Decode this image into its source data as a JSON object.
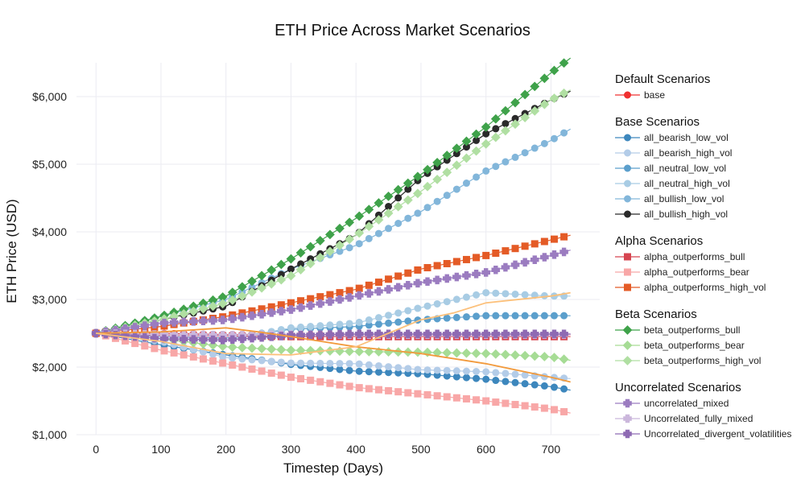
{
  "chart_data": {
    "type": "line",
    "title": "ETH Price Across Market Scenarios",
    "xlabel": "Timestep (Days)",
    "ylabel": "ETH Price (USD)",
    "xlim": [
      -30,
      775
    ],
    "ylim": [
      1000,
      6500
    ],
    "x_ticks": [
      0,
      100,
      200,
      300,
      400,
      500,
      600,
      700
    ],
    "x_tick_labels": [
      "0",
      "100",
      "200",
      "300",
      "400",
      "500",
      "600",
      "700"
    ],
    "y_ticks": [
      1000,
      2000,
      3000,
      4000,
      5000,
      6000
    ],
    "y_tick_labels": [
      "$1,000",
      "$2,000",
      "$3,000",
      "$4,000",
      "$5,000",
      "$6,000"
    ],
    "grid": true,
    "legend_position": "right",
    "groups": [
      {
        "title": "Default Scenarios",
        "series": [
          {
            "name": "base",
            "color": "#f03030",
            "marker": "circle",
            "x": [
              0,
              100,
              200,
              300,
              400,
              500,
              600,
              700,
              730
            ],
            "y": [
              2500,
              2500,
              2480,
              2480,
              2480,
              2480,
              2480,
              2480,
              2480
            ]
          }
        ]
      },
      {
        "title": "Base Scenarios",
        "series": [
          {
            "name": "all_bearish_low_vol",
            "color": "#3d87bd",
            "marker": "circle",
            "x": [
              0,
              100,
              200,
              300,
              400,
              500,
              600,
              700,
              730
            ],
            "y": [
              2500,
              2330,
              2180,
              2040,
              1940,
              1900,
              1820,
              1710,
              1660
            ]
          },
          {
            "name": "all_bearish_high_vol",
            "color": "#b3cce8",
            "marker": "circle",
            "x": [
              0,
              100,
              200,
              300,
              400,
              500,
              600,
              700,
              730
            ],
            "y": [
              2500,
              2380,
              2140,
              2060,
              2050,
              1960,
              1930,
              1850,
              1830
            ]
          },
          {
            "name": "all_neutral_low_vol",
            "color": "#5b9fcc",
            "marker": "circle",
            "x": [
              0,
              100,
              200,
              300,
              400,
              500,
              600,
              700,
              730
            ],
            "y": [
              2500,
              2450,
              2430,
              2560,
              2600,
              2700,
              2760,
              2760,
              2760
            ]
          },
          {
            "name": "all_neutral_high_vol",
            "color": "#a8cce4",
            "marker": "circle",
            "x": [
              0,
              100,
              200,
              300,
              400,
              500,
              600,
              700,
              730
            ],
            "y": [
              2500,
              2420,
              2400,
              2580,
              2650,
              2880,
              3100,
              3050,
              3050
            ]
          },
          {
            "name": "all_bullish_low_vol",
            "color": "#82b6da",
            "marker": "circle",
            "x": [
              0,
              100,
              200,
              300,
              400,
              500,
              600,
              700,
              730
            ],
            "y": [
              2500,
              2750,
              3000,
              3450,
              3800,
              4300,
              4900,
              5350,
              5520
            ]
          },
          {
            "name": "all_bullish_high_vol",
            "color": "#2a2a2a",
            "marker": "circle",
            "x": [
              0,
              100,
              200,
              300,
              400,
              500,
              600,
              700,
              730
            ],
            "y": [
              2500,
              2700,
              2900,
              3450,
              3950,
              4800,
              5450,
              5950,
              6080
            ]
          }
        ]
      },
      {
        "title": "Alpha Scenarios",
        "series": [
          {
            "name": "alpha_outperforms_bull",
            "color": "#d64550",
            "marker": "square",
            "x": [
              0,
              100,
              200,
              300,
              400,
              500,
              600,
              700,
              730
            ],
            "y": [
              2500,
              2470,
              2460,
              2450,
              2450,
              2450,
              2450,
              2450,
              2450
            ]
          },
          {
            "name": "alpha_outperforms_bear",
            "color": "#f8a7a7",
            "marker": "square",
            "x": [
              0,
              100,
              200,
              300,
              400,
              500,
              600,
              700,
              730
            ],
            "y": [
              2500,
              2250,
              2050,
              1850,
              1700,
              1600,
              1500,
              1380,
              1320
            ]
          },
          {
            "name": "alpha_outperforms_high_vol",
            "color": "#e45b26",
            "marker": "square",
            "x": [
              0,
              100,
              200,
              300,
              400,
              500,
              600,
              700,
              730
            ],
            "y": [
              2500,
              2600,
              2750,
              2950,
              3150,
              3450,
              3650,
              3880,
              3950
            ]
          }
        ]
      },
      {
        "title": "Beta Scenarios",
        "series": [
          {
            "name": "beta_outperforms_bull",
            "color": "#3fa24a",
            "marker": "diamond",
            "x": [
              0,
              100,
              200,
              300,
              400,
              500,
              600,
              700,
              730
            ],
            "y": [
              2500,
              2750,
              3050,
              3600,
              4200,
              4850,
              5550,
              6350,
              6570
            ]
          },
          {
            "name": "beta_outperforms_bear",
            "color": "#a6dc95",
            "marker": "diamond",
            "x": [
              0,
              100,
              200,
              300,
              400,
              500,
              600,
              700,
              730
            ],
            "y": [
              2500,
              2420,
              2300,
              2250,
              2230,
              2220,
              2200,
              2150,
              2100
            ]
          },
          {
            "name": "beta_outperforms_high_vol",
            "color": "#b0dfa2",
            "marker": "diamond",
            "x": [
              0,
              100,
              200,
              300,
              400,
              500,
              600,
              700,
              730
            ],
            "y": [
              2500,
              2700,
              2950,
              3350,
              3950,
              4600,
              5300,
              5950,
              6100
            ]
          }
        ]
      },
      {
        "title": "Uncorrelated Scenarios",
        "series": [
          {
            "name": "uncorrelated_mixed",
            "color": "#9b7cc0",
            "marker": "cross",
            "x": [
              0,
              100,
              200,
              300,
              400,
              500,
              600,
              700,
              730
            ],
            "y": [
              2500,
              2650,
              2700,
              2850,
              3050,
              3250,
              3400,
              3650,
              3730
            ]
          },
          {
            "name": "Uncorrelated_fully_mixed",
            "color": "#cbb7dc",
            "marker": "cross",
            "x": [
              0,
              100,
              200,
              300,
              400,
              500,
              600,
              700,
              730
            ],
            "y": [
              2500,
              2480,
              2470,
              2480,
              2480,
              2480,
              2480,
              2480,
              2480
            ]
          },
          {
            "name": "Uncorrelated_divergent_volatilities",
            "color": "#8e6ab3",
            "marker": "cross",
            "x": [
              0,
              100,
              200,
              300,
              400,
              500,
              600,
              700,
              730
            ],
            "y": [
              2500,
              2420,
              2400,
              2470,
              2490,
              2490,
              2490,
              2490,
              2490
            ]
          }
        ]
      },
      {
        "title": "",
        "series": [
          {
            "name": "",
            "color": "#f29a3c",
            "marker": "none",
            "x": [
              0,
              100,
              200,
              250,
              300,
              400,
              500,
              600,
              700,
              730
            ],
            "y": [
              2500,
              2520,
              2580,
              2520,
              2450,
              2300,
              2200,
              2050,
              1850,
              1780
            ]
          },
          {
            "name": "",
            "color": "#fcc07a",
            "marker": "none",
            "x": [
              0,
              100,
              200,
              300,
              400,
              500,
              550,
              600,
              700,
              730
            ],
            "y": [
              2500,
              2380,
              2200,
              2180,
              2300,
              2700,
              2800,
              2950,
              3050,
              3100
            ]
          }
        ]
      }
    ]
  }
}
